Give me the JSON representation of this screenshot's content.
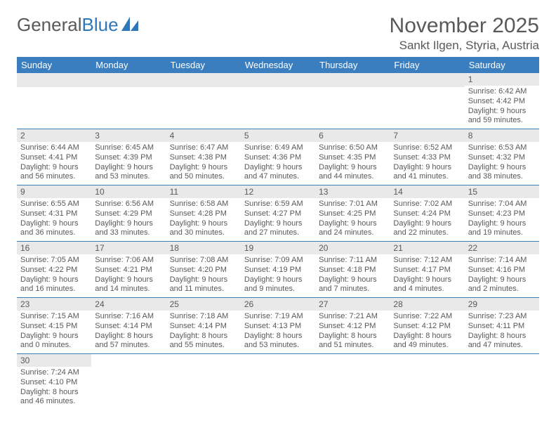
{
  "logo": {
    "part1": "General",
    "part2": "Blue"
  },
  "header": {
    "month_title": "November 2025",
    "location": "Sankt Ilgen, Styria, Austria"
  },
  "colors": {
    "header_bg": "#3a7ebf",
    "header_text": "#ffffff",
    "daynum_bg": "#e9e9e9",
    "text": "#595959",
    "row_border": "#3a7ebf"
  },
  "day_headers": [
    "Sunday",
    "Monday",
    "Tuesday",
    "Wednesday",
    "Thursday",
    "Friday",
    "Saturday"
  ],
  "weeks": [
    [
      null,
      null,
      null,
      null,
      null,
      null,
      {
        "n": "1",
        "sr": "Sunrise: 6:42 AM",
        "ss": "Sunset: 4:42 PM",
        "d1": "Daylight: 9 hours",
        "d2": "and 59 minutes."
      }
    ],
    [
      {
        "n": "2",
        "sr": "Sunrise: 6:44 AM",
        "ss": "Sunset: 4:41 PM",
        "d1": "Daylight: 9 hours",
        "d2": "and 56 minutes."
      },
      {
        "n": "3",
        "sr": "Sunrise: 6:45 AM",
        "ss": "Sunset: 4:39 PM",
        "d1": "Daylight: 9 hours",
        "d2": "and 53 minutes."
      },
      {
        "n": "4",
        "sr": "Sunrise: 6:47 AM",
        "ss": "Sunset: 4:38 PM",
        "d1": "Daylight: 9 hours",
        "d2": "and 50 minutes."
      },
      {
        "n": "5",
        "sr": "Sunrise: 6:49 AM",
        "ss": "Sunset: 4:36 PM",
        "d1": "Daylight: 9 hours",
        "d2": "and 47 minutes."
      },
      {
        "n": "6",
        "sr": "Sunrise: 6:50 AM",
        "ss": "Sunset: 4:35 PM",
        "d1": "Daylight: 9 hours",
        "d2": "and 44 minutes."
      },
      {
        "n": "7",
        "sr": "Sunrise: 6:52 AM",
        "ss": "Sunset: 4:33 PM",
        "d1": "Daylight: 9 hours",
        "d2": "and 41 minutes."
      },
      {
        "n": "8",
        "sr": "Sunrise: 6:53 AM",
        "ss": "Sunset: 4:32 PM",
        "d1": "Daylight: 9 hours",
        "d2": "and 38 minutes."
      }
    ],
    [
      {
        "n": "9",
        "sr": "Sunrise: 6:55 AM",
        "ss": "Sunset: 4:31 PM",
        "d1": "Daylight: 9 hours",
        "d2": "and 36 minutes."
      },
      {
        "n": "10",
        "sr": "Sunrise: 6:56 AM",
        "ss": "Sunset: 4:29 PM",
        "d1": "Daylight: 9 hours",
        "d2": "and 33 minutes."
      },
      {
        "n": "11",
        "sr": "Sunrise: 6:58 AM",
        "ss": "Sunset: 4:28 PM",
        "d1": "Daylight: 9 hours",
        "d2": "and 30 minutes."
      },
      {
        "n": "12",
        "sr": "Sunrise: 6:59 AM",
        "ss": "Sunset: 4:27 PM",
        "d1": "Daylight: 9 hours",
        "d2": "and 27 minutes."
      },
      {
        "n": "13",
        "sr": "Sunrise: 7:01 AM",
        "ss": "Sunset: 4:25 PM",
        "d1": "Daylight: 9 hours",
        "d2": "and 24 minutes."
      },
      {
        "n": "14",
        "sr": "Sunrise: 7:02 AM",
        "ss": "Sunset: 4:24 PM",
        "d1": "Daylight: 9 hours",
        "d2": "and 22 minutes."
      },
      {
        "n": "15",
        "sr": "Sunrise: 7:04 AM",
        "ss": "Sunset: 4:23 PM",
        "d1": "Daylight: 9 hours",
        "d2": "and 19 minutes."
      }
    ],
    [
      {
        "n": "16",
        "sr": "Sunrise: 7:05 AM",
        "ss": "Sunset: 4:22 PM",
        "d1": "Daylight: 9 hours",
        "d2": "and 16 minutes."
      },
      {
        "n": "17",
        "sr": "Sunrise: 7:06 AM",
        "ss": "Sunset: 4:21 PM",
        "d1": "Daylight: 9 hours",
        "d2": "and 14 minutes."
      },
      {
        "n": "18",
        "sr": "Sunrise: 7:08 AM",
        "ss": "Sunset: 4:20 PM",
        "d1": "Daylight: 9 hours",
        "d2": "and 11 minutes."
      },
      {
        "n": "19",
        "sr": "Sunrise: 7:09 AM",
        "ss": "Sunset: 4:19 PM",
        "d1": "Daylight: 9 hours",
        "d2": "and 9 minutes."
      },
      {
        "n": "20",
        "sr": "Sunrise: 7:11 AM",
        "ss": "Sunset: 4:18 PM",
        "d1": "Daylight: 9 hours",
        "d2": "and 7 minutes."
      },
      {
        "n": "21",
        "sr": "Sunrise: 7:12 AM",
        "ss": "Sunset: 4:17 PM",
        "d1": "Daylight: 9 hours",
        "d2": "and 4 minutes."
      },
      {
        "n": "22",
        "sr": "Sunrise: 7:14 AM",
        "ss": "Sunset: 4:16 PM",
        "d1": "Daylight: 9 hours",
        "d2": "and 2 minutes."
      }
    ],
    [
      {
        "n": "23",
        "sr": "Sunrise: 7:15 AM",
        "ss": "Sunset: 4:15 PM",
        "d1": "Daylight: 9 hours",
        "d2": "and 0 minutes."
      },
      {
        "n": "24",
        "sr": "Sunrise: 7:16 AM",
        "ss": "Sunset: 4:14 PM",
        "d1": "Daylight: 8 hours",
        "d2": "and 57 minutes."
      },
      {
        "n": "25",
        "sr": "Sunrise: 7:18 AM",
        "ss": "Sunset: 4:14 PM",
        "d1": "Daylight: 8 hours",
        "d2": "and 55 minutes."
      },
      {
        "n": "26",
        "sr": "Sunrise: 7:19 AM",
        "ss": "Sunset: 4:13 PM",
        "d1": "Daylight: 8 hours",
        "d2": "and 53 minutes."
      },
      {
        "n": "27",
        "sr": "Sunrise: 7:21 AM",
        "ss": "Sunset: 4:12 PM",
        "d1": "Daylight: 8 hours",
        "d2": "and 51 minutes."
      },
      {
        "n": "28",
        "sr": "Sunrise: 7:22 AM",
        "ss": "Sunset: 4:12 PM",
        "d1": "Daylight: 8 hours",
        "d2": "and 49 minutes."
      },
      {
        "n": "29",
        "sr": "Sunrise: 7:23 AM",
        "ss": "Sunset: 4:11 PM",
        "d1": "Daylight: 8 hours",
        "d2": "and 47 minutes."
      }
    ],
    [
      {
        "n": "30",
        "sr": "Sunrise: 7:24 AM",
        "ss": "Sunset: 4:10 PM",
        "d1": "Daylight: 8 hours",
        "d2": "and 46 minutes."
      },
      null,
      null,
      null,
      null,
      null,
      null
    ]
  ]
}
